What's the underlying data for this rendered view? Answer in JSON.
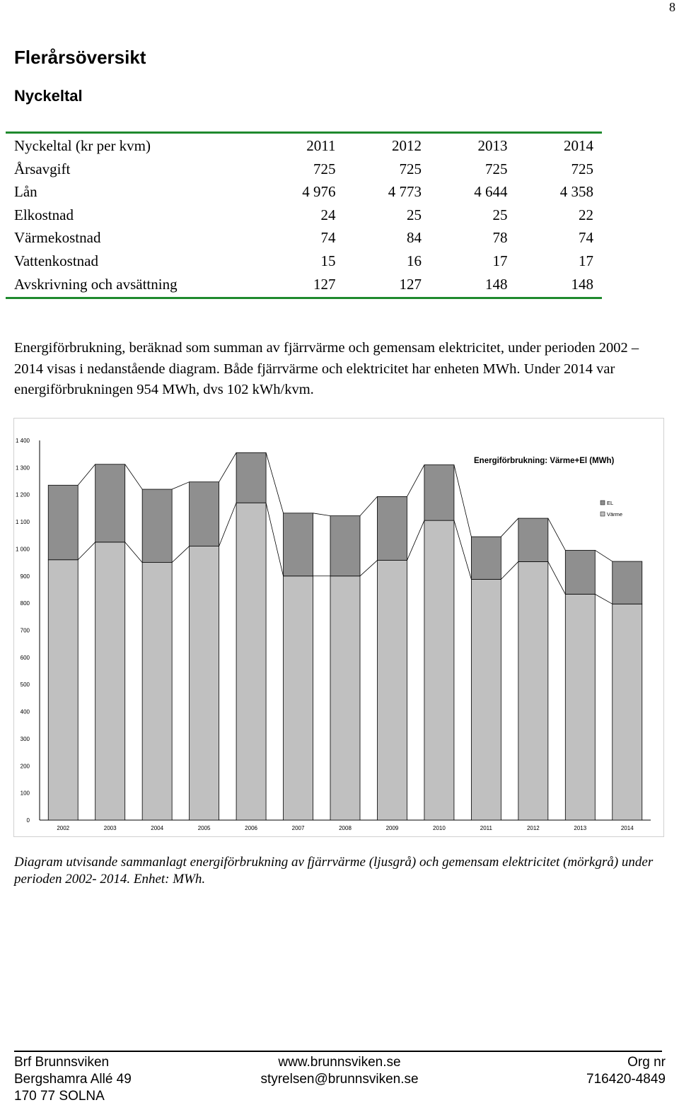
{
  "page_number": "8",
  "title": "Flerårsöversikt",
  "subtitle": "Nyckeltal",
  "table": {
    "header": [
      "Nyckeltal (kr per kvm)",
      "2011",
      "2012",
      "2013",
      "2014"
    ],
    "rows": [
      [
        "Årsavgift",
        "725",
        "725",
        "725",
        "725"
      ],
      [
        "Lån",
        "4 976",
        "4 773",
        "4 644",
        "4 358"
      ],
      [
        "Elkostnad",
        "24",
        "25",
        "25",
        "22"
      ],
      [
        "Värmekostnad",
        "74",
        "84",
        "78",
        "74"
      ],
      [
        "Vattenkostnad",
        "15",
        "16",
        "17",
        "17"
      ],
      [
        "Avskrivning och avsättning",
        "127",
        "127",
        "148",
        "148"
      ]
    ]
  },
  "paragraph": "Energiförbrukning, beräknad som summan av fjärrvärme och gemensam elektricitet, under perioden 2002 – 2014 visas i nedanstående diagram. Både fjärrvärme och elektricitet har enheten MWh. Under 2014 var energiförbrukningen 954 MWh, dvs 102 kWh/kvm.",
  "chart_data": {
    "type": "bar",
    "stacked": true,
    "title": "Energiförbrukning: Värme+El (MWh)",
    "categories": [
      "2002",
      "2003",
      "2004",
      "2005",
      "2006",
      "2007",
      "2008",
      "2009",
      "2010",
      "2011",
      "2012",
      "2013",
      "2014"
    ],
    "series": [
      {
        "name": "Värme",
        "color": "#c0c0c0",
        "values": [
          960,
          1025,
          950,
          1010,
          1170,
          900,
          900,
          958,
          1105,
          888,
          953,
          833,
          797
        ]
      },
      {
        "name": "EL",
        "color": "#8f8f8f",
        "values": [
          275,
          287,
          270,
          237,
          185,
          232,
          222,
          235,
          205,
          157,
          160,
          162,
          157
        ]
      }
    ],
    "yticks": [
      "0",
      "100",
      "200",
      "300",
      "400",
      "500",
      "600",
      "700",
      "800",
      "900",
      "1 000",
      "1 100",
      "1 200",
      "1 300",
      "1 400"
    ],
    "ylim": [
      0,
      1400
    ],
    "legend": [
      "EL",
      "Värme"
    ],
    "legend_position": "right",
    "grid": false
  },
  "caption": "Diagram utvisande sammanlagt energiförbrukning av fjärrvärme (ljusgrå) och gemensam elektricitet (mörkgrå) under perioden 2002- 2014. Enhet: MWh.",
  "footer": {
    "left": [
      "Brf Brunnsviken",
      "Bergshamra Allé 49",
      "170 77 SOLNA"
    ],
    "center": [
      "www.brunnsviken.se",
      "styrelsen@brunnsviken.se"
    ],
    "right": [
      "Org nr",
      "716420-4849"
    ]
  }
}
